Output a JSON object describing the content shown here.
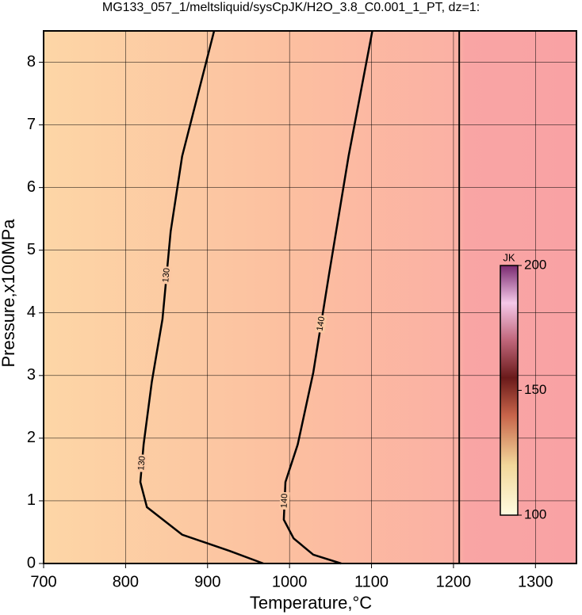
{
  "chart_data": {
    "type": "contour",
    "title": "MG133_057_1/meltsliquid/sysCpJK/H2O_3.8_C0.001_1_PT, dz=1:",
    "x_label": "Temperature,°C",
    "y_label": "Pressure,x100MPa",
    "xlim": [
      700,
      1350
    ],
    "xticks": [
      700,
      800,
      900,
      1000,
      1100,
      1200,
      1300
    ],
    "ylim": [
      0,
      8.5
    ],
    "yticks": [
      0,
      1,
      2,
      3,
      4,
      5,
      6,
      7,
      8
    ],
    "grid": true,
    "contours": [
      {
        "level": 130,
        "color": "#000000",
        "x": [
          908,
          869,
          855,
          845,
          832,
          822,
          818,
          826,
          869,
          927,
          968
        ],
        "y": [
          8.5,
          6.5,
          5.3,
          3.9,
          2.9,
          1.9,
          1.3,
          0.9,
          0.46,
          0.2,
          0
        ]
      },
      {
        "level": 140,
        "color": "#000000",
        "x": [
          1101,
          1072,
          1048,
          1029,
          1010,
          995,
          993,
          1005,
          1029,
          1063
        ],
        "y": [
          8.5,
          6.5,
          4.6,
          3.05,
          1.9,
          1.3,
          0.7,
          0.4,
          0.14,
          0
        ]
      }
    ],
    "colorbar": {
      "label": "JK",
      "lim": [
        100,
        200
      ],
      "ticks": [
        100,
        150,
        200
      ]
    }
  }
}
